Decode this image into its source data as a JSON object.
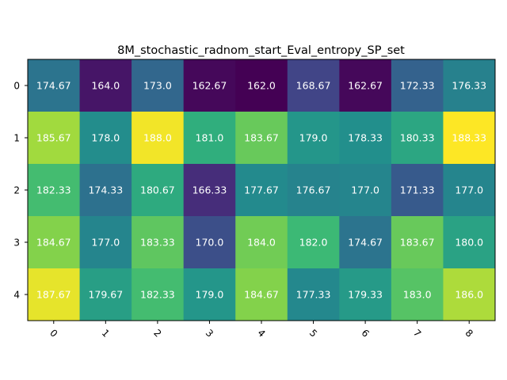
{
  "chart_data": {
    "type": "heatmap",
    "title": "8M_stochastic_radnom_start_Eval_entropy_SP_set",
    "xlabel": "",
    "ylabel": "",
    "x_ticks": [
      "0",
      "1",
      "2",
      "3",
      "4",
      "5",
      "6",
      "7",
      "8"
    ],
    "y_ticks": [
      "0",
      "1",
      "2",
      "3",
      "4"
    ],
    "colormap": "viridis",
    "vmin": 162.0,
    "vmax": 188.33,
    "values": [
      [
        174.67,
        164.0,
        173.0,
        162.67,
        162.0,
        168.67,
        162.67,
        172.33,
        176.33
      ],
      [
        185.67,
        178.0,
        188.0,
        181.0,
        183.67,
        179.0,
        178.33,
        180.33,
        188.33
      ],
      [
        182.33,
        174.33,
        180.67,
        166.33,
        177.67,
        176.67,
        177.0,
        171.33,
        177.0
      ],
      [
        184.67,
        177.0,
        183.33,
        170.0,
        184.0,
        182.0,
        174.67,
        183.67,
        180.0
      ],
      [
        187.67,
        179.67,
        182.33,
        179.0,
        184.67,
        177.33,
        179.33,
        183.0,
        186.0
      ]
    ],
    "labels": [
      [
        "174.67",
        "164.0",
        "173.0",
        "162.67",
        "162.0",
        "168.67",
        "162.67",
        "172.33",
        "176.33"
      ],
      [
        "185.67",
        "178.0",
        "188.0",
        "181.0",
        "183.67",
        "179.0",
        "178.33",
        "180.33",
        "188.33"
      ],
      [
        "182.33",
        "174.33",
        "180.67",
        "166.33",
        "177.67",
        "176.67",
        "177.0",
        "171.33",
        "177.0"
      ],
      [
        "184.67",
        "177.0",
        "183.33",
        "170.0",
        "184.0",
        "182.0",
        "174.67",
        "183.67",
        "180.0"
      ],
      [
        "187.67",
        "179.67",
        "182.33",
        "179.0",
        "184.67",
        "177.33",
        "179.33",
        "183.0",
        "186.0"
      ]
    ]
  }
}
